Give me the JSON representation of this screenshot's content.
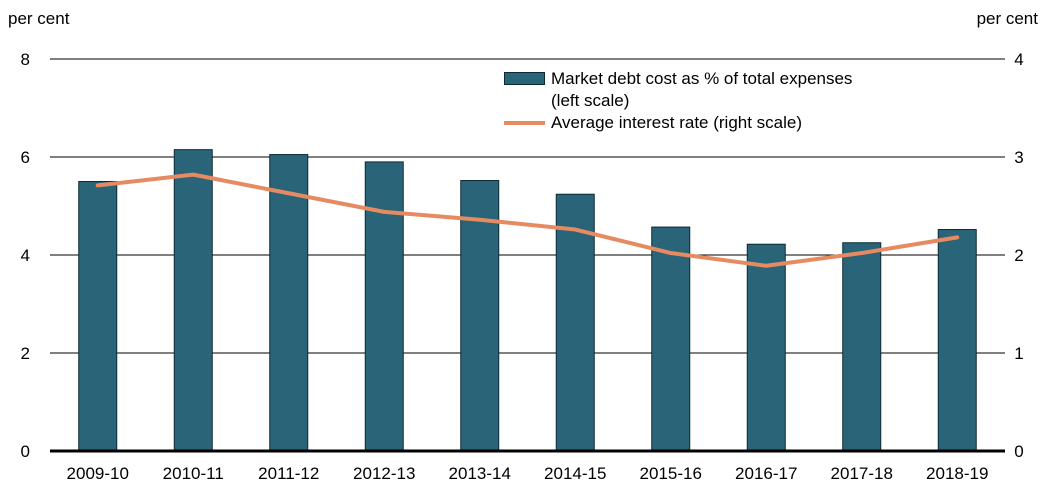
{
  "chart_data": {
    "type": "bar",
    "title": "",
    "left_axis_title": "per cent",
    "right_axis_title": "per cent",
    "categories": [
      "2009-10",
      "2010-11",
      "2011-12",
      "2012-13",
      "2013-14",
      "2014-15",
      "2015-16",
      "2016-17",
      "2017-18",
      "2018-19"
    ],
    "series": [
      {
        "name": "Market debt cost as % of total expenses (left scale)",
        "name_line1": "Market debt cost as % of total expenses",
        "name_line2": "(left scale)",
        "type": "bar",
        "axis": "left",
        "color": "#2a6478",
        "values": [
          5.5,
          6.15,
          6.05,
          5.9,
          5.52,
          5.24,
          4.57,
          4.22,
          4.25,
          4.52
        ]
      },
      {
        "name": "Average interest rate (right scale)",
        "type": "line",
        "axis": "right",
        "color": "#e68a62",
        "values": [
          2.71,
          2.82,
          2.63,
          2.44,
          2.36,
          2.26,
          2.02,
          1.89,
          2.02,
          2.18
        ]
      }
    ],
    "ylim_left": [
      0,
      8
    ],
    "yticks_left": [
      "0",
      "2",
      "4",
      "6",
      "8"
    ],
    "ylim_right": [
      0,
      4
    ],
    "yticks_right": [
      "0",
      "1",
      "2",
      "3",
      "4"
    ],
    "grid": true,
    "legend_position": "top-right"
  }
}
